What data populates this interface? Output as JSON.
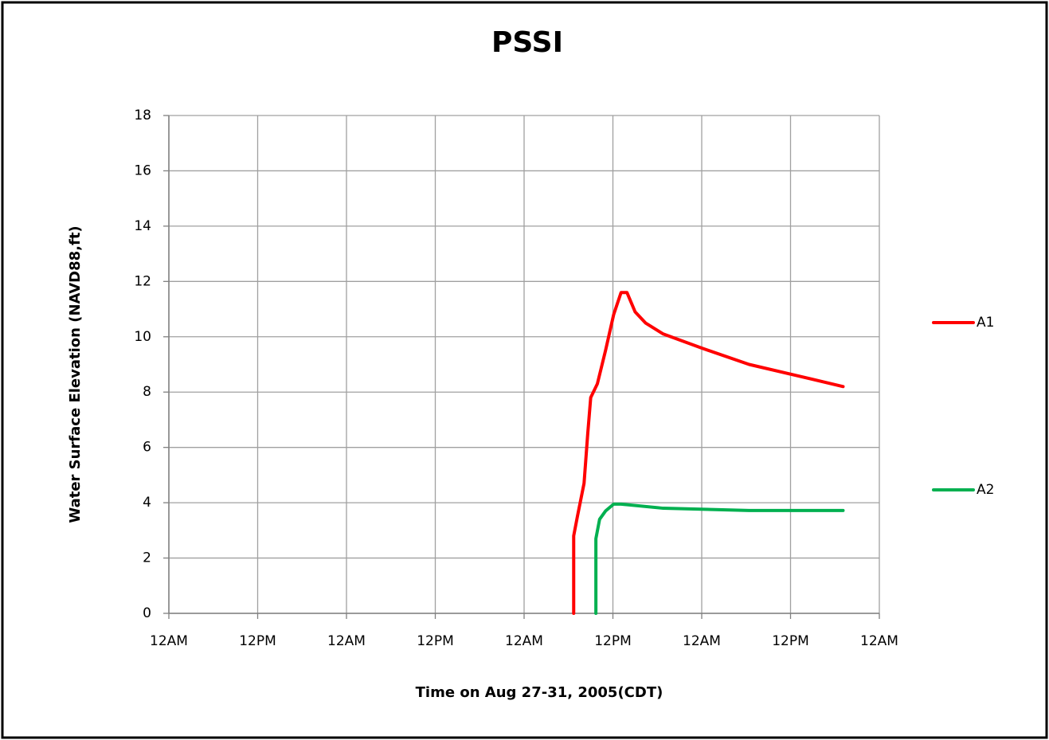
{
  "chart_data": {
    "type": "line",
    "title": "PSSI",
    "x_label": "Time  on Aug 27-31, 2005(CDT)",
    "y_label": "Water Surface Elevation  (NAVD88,ft)",
    "xlim": [
      0,
      96
    ],
    "xticks": [
      {
        "value": 0,
        "label": "12AM"
      },
      {
        "value": 12,
        "label": "12PM"
      },
      {
        "value": 24,
        "label": "12AM"
      },
      {
        "value": 36,
        "label": "12PM"
      },
      {
        "value": 48,
        "label": "12AM"
      },
      {
        "value": 60,
        "label": "12PM"
      },
      {
        "value": 72,
        "label": "12AM"
      },
      {
        "value": 84,
        "label": "12PM"
      },
      {
        "value": 96,
        "label": "12AM"
      }
    ],
    "ylim": [
      0,
      18
    ],
    "yticks": [
      0,
      2,
      4,
      6,
      8,
      10,
      12,
      14,
      16,
      18
    ],
    "grid": true,
    "legend": "right",
    "series": [
      {
        "name": "A1",
        "color": "#ff0000",
        "x": [
          54.7,
          54.7,
          55.2,
          56.1,
          56.6,
          57.0,
          57.9,
          59.0,
          60.1,
          61.1,
          61.9,
          63.0,
          64.4,
          66.8,
          71.9,
          78.4,
          84.8,
          91.1
        ],
        "values": [
          0,
          2.8,
          3.5,
          4.7,
          6.5,
          7.8,
          8.3,
          9.5,
          10.8,
          11.6,
          11.6,
          10.9,
          10.5,
          10.1,
          9.6,
          9.0,
          8.6,
          8.2
        ]
      },
      {
        "name": "A2",
        "color": "#00b050",
        "x": [
          57.7,
          57.7,
          58.2,
          59.0,
          60.1,
          61.1,
          66.8,
          78.4,
          91.1
        ],
        "values": [
          0,
          2.7,
          3.4,
          3.7,
          3.95,
          3.95,
          3.8,
          3.72,
          3.72
        ]
      }
    ]
  }
}
